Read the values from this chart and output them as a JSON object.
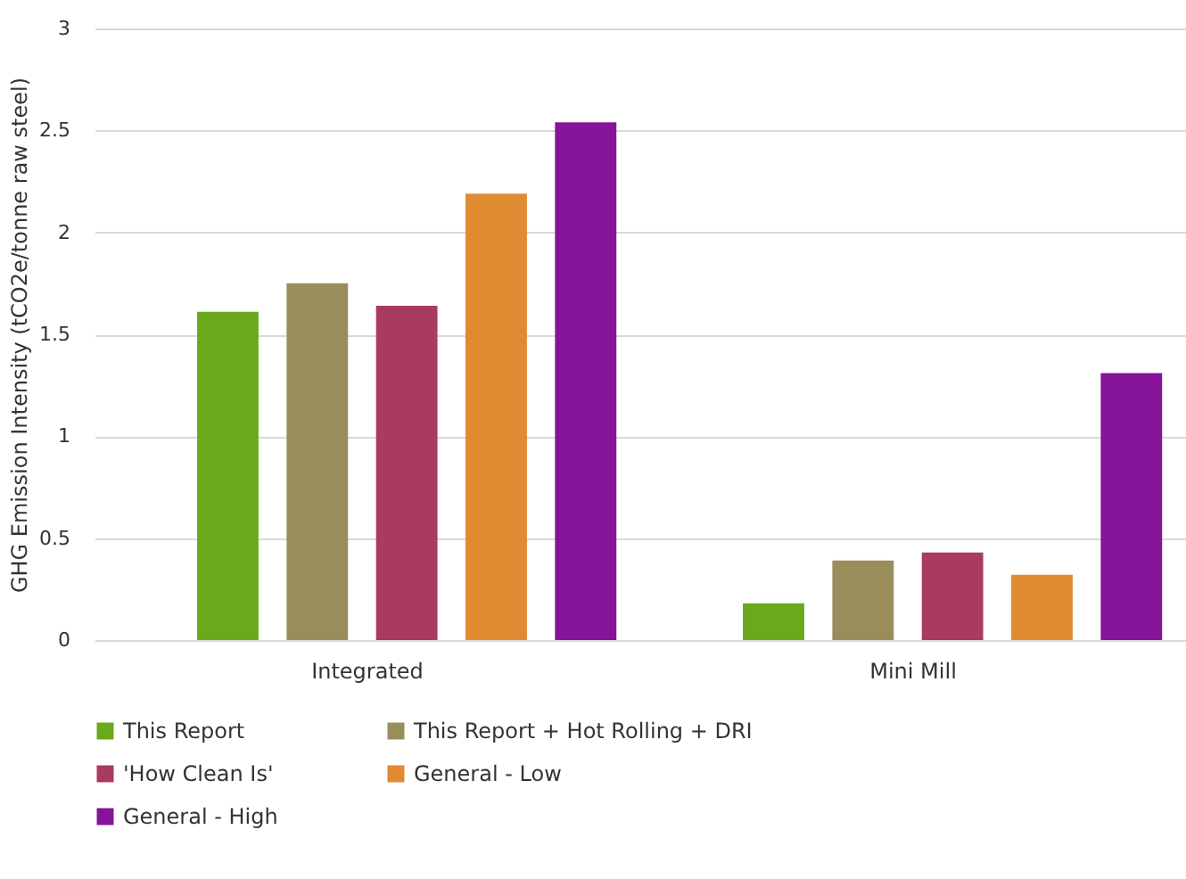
{
  "chart_data": {
    "type": "bar",
    "ylabel": "GHG Emission Intensity (tCO2e/tonne raw steel)",
    "categories": [
      "Integrated",
      "Mini Mill"
    ],
    "series": [
      {
        "name": "This Report",
        "color": "#6aa81c",
        "values": [
          1.61,
          0.18
        ]
      },
      {
        "name": "This Report + Hot Rolling + DRI",
        "color": "#9a8d5c",
        "values": [
          1.75,
          0.39
        ]
      },
      {
        "name": "'How Clean Is'",
        "color": "#a93a62",
        "values": [
          1.64,
          0.43
        ]
      },
      {
        "name": "General - Low",
        "color": "#e08a32",
        "values": [
          2.19,
          0.32
        ]
      },
      {
        "name": "General - High",
        "color": "#86149a",
        "values": [
          2.54,
          1.31
        ]
      }
    ],
    "ylim": [
      0,
      3
    ],
    "yticks": [
      0,
      0.5,
      1,
      1.5,
      2,
      2.5,
      3
    ],
    "grid": "y",
    "legend": "bottom"
  }
}
